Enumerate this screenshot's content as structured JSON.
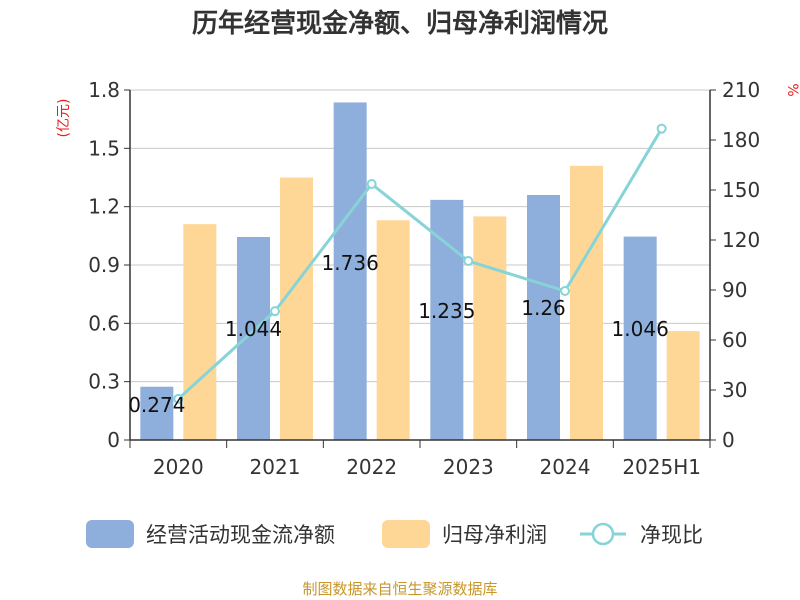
{
  "chart_data": {
    "type": "bar",
    "title": "历年经营现金净额、归母净利润情况",
    "categories": [
      "2020",
      "2021",
      "2022",
      "2023",
      "2024",
      "2025H1"
    ],
    "left_axis": {
      "unit": "(亿元)",
      "ylim": [
        0,
        1.8
      ],
      "ticks": [
        "0",
        "0.3",
        "0.6",
        "0.9",
        "1.2",
        "1.5",
        "1.8"
      ]
    },
    "right_axis": {
      "unit": "%",
      "ylim": [
        0,
        210
      ],
      "ticks": [
        "0",
        "30",
        "60",
        "90",
        "120",
        "150",
        "180",
        "210"
      ]
    },
    "grid": true,
    "legend_position": "bottom",
    "series": [
      {
        "name": "经营活动现金流净额",
        "type": "bar",
        "axis": "left",
        "color": "#8eaedb",
        "values": [
          0.274,
          1.044,
          1.736,
          1.235,
          1.26,
          1.046
        ],
        "labels": [
          "0.274",
          "1.044",
          "1.736",
          "1.235",
          "1.26",
          "1.046"
        ]
      },
      {
        "name": "归母净利润",
        "type": "bar",
        "axis": "left",
        "color": "#fed797",
        "values": [
          1.11,
          1.35,
          1.13,
          1.15,
          1.41,
          0.56
        ]
      },
      {
        "name": "净现比",
        "type": "line",
        "axis": "right",
        "color": "#86d4d8",
        "values": [
          24.7,
          77.3,
          153.6,
          107.4,
          89.4,
          186.8
        ]
      }
    ],
    "source": "制图数据来自恒生聚源数据库"
  }
}
